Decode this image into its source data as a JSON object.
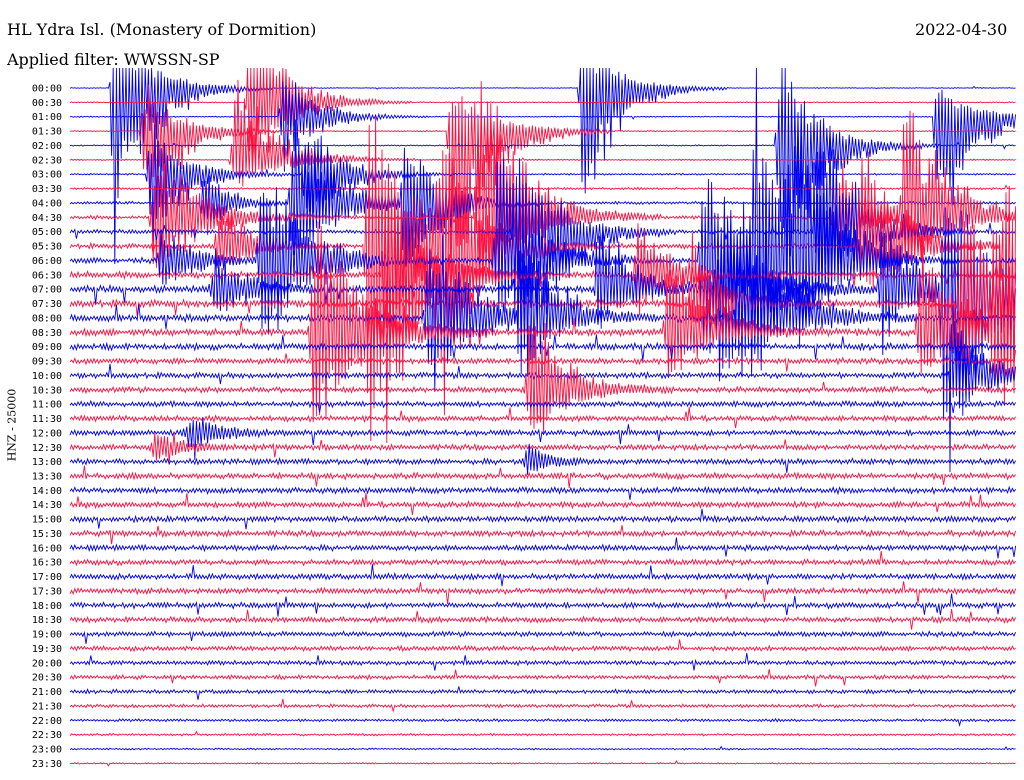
{
  "header": {
    "station": "HL Ydra Isl. (Monastery of Dormition)",
    "filter": "Applied filter: WWSSN-SP",
    "date": "2022-04-30",
    "channel": "HNZ - 25000"
  },
  "colors": {
    "even_trace": "#0000ee",
    "odd_trace": "#ff1040",
    "text": "#000000",
    "background": "#ffffff"
  },
  "chart_data": {
    "type": "line",
    "title": "HL Ydra Isl. (Monastery of Dormition)",
    "subtitle": "Applied filter: WWSSN-SP",
    "ylabel": "HNZ - 25000",
    "xlabel": "",
    "grid": false,
    "legend": "none",
    "row_labels": [
      "00:00",
      "00:30",
      "01:00",
      "01:30",
      "02:00",
      "02:30",
      "03:00",
      "03:30",
      "04:00",
      "04:30",
      "05:00",
      "05:30",
      "06:00",
      "06:30",
      "07:00",
      "07:30",
      "08:00",
      "08:30",
      "09:00",
      "09:30",
      "10:00",
      "10:30",
      "11:00",
      "11:30",
      "12:00",
      "12:30",
      "13:00",
      "13:30",
      "14:00",
      "14:30",
      "15:00",
      "15:30",
      "16:00",
      "16:30",
      "17:00",
      "17:30",
      "18:00",
      "18:30",
      "19:00",
      "19:30",
      "20:00",
      "20:30",
      "21:00",
      "21:30",
      "22:00",
      "22:30",
      "23:00",
      "23:30"
    ],
    "row_noise": [
      0.3,
      0.4,
      0.4,
      0.4,
      0.5,
      0.5,
      0.6,
      0.8,
      1.0,
      1.3,
      1.5,
      1.8,
      2.0,
      2.3,
      2.5,
      2.6,
      2.6,
      2.5,
      2.3,
      2.1,
      2.0,
      2.0,
      2.0,
      2.0,
      2.0,
      2.0,
      2.0,
      2.1,
      2.1,
      2.1,
      2.1,
      2.1,
      2.0,
      2.0,
      2.0,
      2.0,
      2.0,
      1.9,
      1.8,
      1.7,
      1.6,
      1.5,
      1.4,
      1.2,
      1.0,
      0.8,
      0.6,
      0.5
    ],
    "events": [
      {
        "minute": 2.8,
        "row": 0,
        "up": 85,
        "down": 200,
        "rise": 0.3,
        "decay": 2.2
      },
      {
        "minute": 4.8,
        "row": 3,
        "up": 55,
        "down": 120,
        "rise": 0.4,
        "decay": 2.0
      },
      {
        "minute": 5.2,
        "row": 6,
        "up": 60,
        "down": 90,
        "rise": 0.4,
        "decay": 2.0
      },
      {
        "minute": 5.5,
        "row": 9,
        "up": 80,
        "down": 90,
        "rise": 0.5,
        "decay": 2.5
      },
      {
        "minute": 5.8,
        "row": 12,
        "up": 45,
        "down": 50,
        "rise": 0.3,
        "decay": 1.8
      },
      {
        "minute": 8.5,
        "row": 8,
        "up": 40,
        "down": 40,
        "rise": 0.3,
        "decay": 1.5
      },
      {
        "minute": 9.2,
        "row": 14,
        "up": 50,
        "down": 40,
        "rise": 0.4,
        "decay": 1.8
      },
      {
        "minute": 9.5,
        "row": 11,
        "up": 60,
        "down": 40,
        "rise": 0.4,
        "decay": 1.8
      },
      {
        "minute": 10.5,
        "row": 5,
        "up": 95,
        "down": 35,
        "rise": 0.4,
        "decay": 2.5
      },
      {
        "minute": 11.5,
        "row": 1,
        "up": 110,
        "down": 90,
        "rise": 0.4,
        "decay": 2.2
      },
      {
        "minute": 12.2,
        "row": 12,
        "up": 120,
        "down": 120,
        "rise": 0.4,
        "decay": 2.5
      },
      {
        "minute": 13.5,
        "row": 2,
        "up": 60,
        "down": 60,
        "rise": 0.3,
        "decay": 2.0
      },
      {
        "minute": 14.2,
        "row": 8,
        "up": 110,
        "down": 90,
        "rise": 0.4,
        "decay": 2.5
      },
      {
        "minute": 15.0,
        "row": 6,
        "up": 70,
        "down": 80,
        "rise": 0.3,
        "decay": 2.0
      },
      {
        "minute": 15.5,
        "row": 17,
        "up": 160,
        "down": 160,
        "rise": 0.4,
        "decay": 2.5
      },
      {
        "minute": 19.0,
        "row": 11,
        "up": 200,
        "down": 280,
        "rise": 0.4,
        "decay": 2.5
      },
      {
        "minute": 20.0,
        "row": 13,
        "up": 130,
        "down": 220,
        "rise": 0.3,
        "decay": 2.2
      },
      {
        "minute": 21.2,
        "row": 8,
        "up": 90,
        "down": 120,
        "rise": 0.3,
        "decay": 2.0
      },
      {
        "minute": 22.8,
        "row": 16,
        "up": 130,
        "down": 100,
        "rise": 0.4,
        "decay": 2.2
      },
      {
        "minute": 23.5,
        "row": 11,
        "up": 110,
        "down": 160,
        "rise": 0.4,
        "decay": 2.2
      },
      {
        "minute": 24.2,
        "row": 3,
        "up": 70,
        "down": 210,
        "rise": 0.3,
        "decay": 2.2
      },
      {
        "minute": 26.0,
        "row": 9,
        "up": 200,
        "down": 100,
        "rise": 0.4,
        "decay": 2.5
      },
      {
        "minute": 27.2,
        "row": 12,
        "up": 150,
        "down": 90,
        "rise": 0.4,
        "decay": 2.2
      },
      {
        "minute": 28.3,
        "row": 10,
        "up": 110,
        "down": 240,
        "rise": 0.3,
        "decay": 2.2
      },
      {
        "minute": 28.7,
        "row": 16,
        "up": 120,
        "down": 60,
        "rise": 0.4,
        "decay": 2.0
      },
      {
        "minute": 29.2,
        "row": 21,
        "up": 120,
        "down": 70,
        "rise": 0.4,
        "decay": 2.0
      },
      {
        "minute": 32.5,
        "row": 0,
        "up": 60,
        "down": 180,
        "rise": 0.3,
        "decay": 2.0
      },
      {
        "minute": 33.5,
        "row": 14,
        "up": 90,
        "down": 50,
        "rise": 0.3,
        "decay": 2.0
      },
      {
        "minute": 36.0,
        "row": 13,
        "up": 70,
        "down": 60,
        "rise": 0.3,
        "decay": 2.0
      },
      {
        "minute": 38.0,
        "row": 17,
        "up": 120,
        "down": 60,
        "rise": 0.4,
        "decay": 2.2
      },
      {
        "minute": 39.5,
        "row": 15,
        "up": 80,
        "down": 40,
        "rise": 0.3,
        "decay": 2.0
      },
      {
        "minute": 40.2,
        "row": 12,
        "up": 140,
        "down": 150,
        "rise": 0.4,
        "decay": 2.5
      },
      {
        "minute": 41.2,
        "row": 14,
        "up": 110,
        "down": 150,
        "rise": 0.4,
        "decay": 2.2
      },
      {
        "minute": 42.5,
        "row": 16,
        "up": 170,
        "down": 80,
        "rise": 0.4,
        "decay": 2.5
      },
      {
        "minute": 43.5,
        "row": 12,
        "up": 210,
        "down": 120,
        "rise": 0.4,
        "decay": 2.2
      },
      {
        "minute": 45.0,
        "row": 4,
        "up": 110,
        "down": 190,
        "rise": 0.3,
        "decay": 2.2
      },
      {
        "minute": 46.2,
        "row": 12,
        "up": 120,
        "down": 70,
        "rise": 0.4,
        "decay": 2.2
      },
      {
        "minute": 47.5,
        "row": 10,
        "up": 160,
        "down": 90,
        "rise": 0.4,
        "decay": 2.2
      },
      {
        "minute": 48.5,
        "row": 9,
        "up": 80,
        "down": 50,
        "rise": 0.3,
        "decay": 2.0
      },
      {
        "minute": 50.2,
        "row": 11,
        "up": 150,
        "down": 90,
        "rise": 0.4,
        "decay": 2.2
      },
      {
        "minute": 51.5,
        "row": 14,
        "up": 90,
        "down": 70,
        "rise": 0.3,
        "decay": 2.0
      },
      {
        "minute": 53.0,
        "row": 9,
        "up": 160,
        "down": 70,
        "rise": 0.4,
        "decay": 2.5
      },
      {
        "minute": 54.0,
        "row": 17,
        "up": 140,
        "down": 60,
        "rise": 0.4,
        "decay": 2.2
      },
      {
        "minute": 55.0,
        "row": 2,
        "up": 40,
        "down": 170,
        "rise": 0.3,
        "decay": 2.0
      },
      {
        "minute": 55.5,
        "row": 14,
        "up": 140,
        "down": 230,
        "rise": 0.4,
        "decay": 2.5
      },
      {
        "minute": 56.0,
        "row": 20,
        "up": 80,
        "down": 60,
        "rise": 0.3,
        "decay": 2.0
      },
      {
        "minute": 56.6,
        "row": 15,
        "up": 130,
        "down": 90,
        "rise": 0.4,
        "decay": 2.5
      },
      {
        "minute": 58.6,
        "row": 17,
        "up": 170,
        "down": 80,
        "rise": 0.4,
        "decay": 2.5
      },
      {
        "minute": 59.3,
        "row": 11,
        "up": 80,
        "down": 260,
        "rise": 0.3,
        "decay": 2.0
      },
      {
        "minute": 8.0,
        "row": 24,
        "up": 25,
        "down": 25,
        "rise": 1.0,
        "decay": 1.5
      },
      {
        "minute": 5.5,
        "row": 25,
        "up": 20,
        "down": 20,
        "rise": 0.5,
        "decay": 1.5
      },
      {
        "minute": 29.0,
        "row": 26,
        "up": 25,
        "down": 20,
        "rise": 0.3,
        "decay": 1.2
      }
    ]
  }
}
